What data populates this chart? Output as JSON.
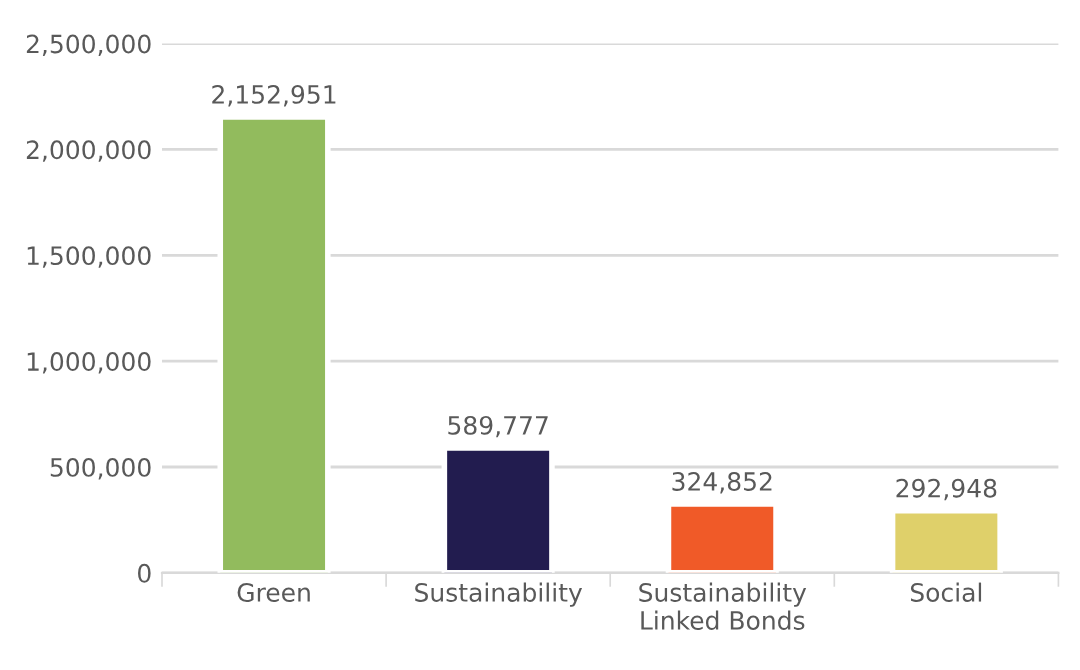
{
  "chart_data": {
    "type": "bar",
    "categories": [
      "Green",
      "Sustainability",
      "Sustainability\nLinked Bonds",
      "Social"
    ],
    "values": [
      2152951,
      589777,
      324852,
      292948
    ],
    "colors": [
      "#92bb5d",
      "#221c4f",
      "#f05a28",
      "#dfd06a"
    ],
    "value_labels": [
      "2,152,951",
      "589,777",
      "324,852",
      "292,948"
    ],
    "ylim": [
      0,
      2500000
    ],
    "yticks": [
      0,
      {
        "value": 500000,
        "label": "500,000"
      },
      {
        "value": 1000000,
        "label": "1,000,000"
      },
      {
        "value": 1500000,
        "label": "1,500,000"
      },
      {
        "value": 2000000,
        "label": "2,000,000"
      },
      {
        "value": 2500000,
        "label": "2,500,000"
      }
    ],
    "grid": "y",
    "legend": false
  }
}
